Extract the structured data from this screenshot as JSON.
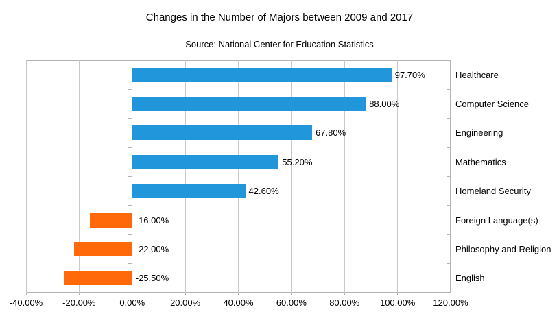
{
  "chart_data": {
    "type": "bar",
    "orientation": "horizontal",
    "title": "Changes in the Number of Majors between 2009 and 2017",
    "subtitle": "Source: National Center for Education Statistics",
    "categories": [
      "Healthcare",
      "Computer Science",
      "Engineering",
      "Mathematics",
      "Homeland Security",
      "Foreign Language(s)",
      "Philosophy and Religion",
      "English"
    ],
    "values": [
      97.7,
      88.0,
      67.8,
      55.2,
      42.6,
      -16.0,
      -22.0,
      -25.5
    ],
    "data_labels": [
      "97.70%",
      "88.00%",
      "67.80%",
      "55.20%",
      "42.60%",
      "-16.00%",
      "-22.00%",
      "-25.50%"
    ],
    "x_ticks": [
      -40,
      -20,
      0,
      20,
      40,
      60,
      80,
      100,
      120
    ],
    "x_tick_labels": [
      "-40.00%",
      "-20.00%",
      "0.00%",
      "20.00%",
      "40.00%",
      "60.00%",
      "80.00%",
      "100.00%",
      "120.00%"
    ],
    "xlim": [
      -40,
      120
    ],
    "xlabel": "",
    "ylabel": "",
    "grid": "vertical",
    "legend": "none",
    "category_labels_position": "right",
    "positive_color": "#2196db",
    "negative_color": "#ff690a",
    "gridline_color": "#c9c9c9",
    "axis_color": "#b3b3b3",
    "text_color": "#000000"
  }
}
